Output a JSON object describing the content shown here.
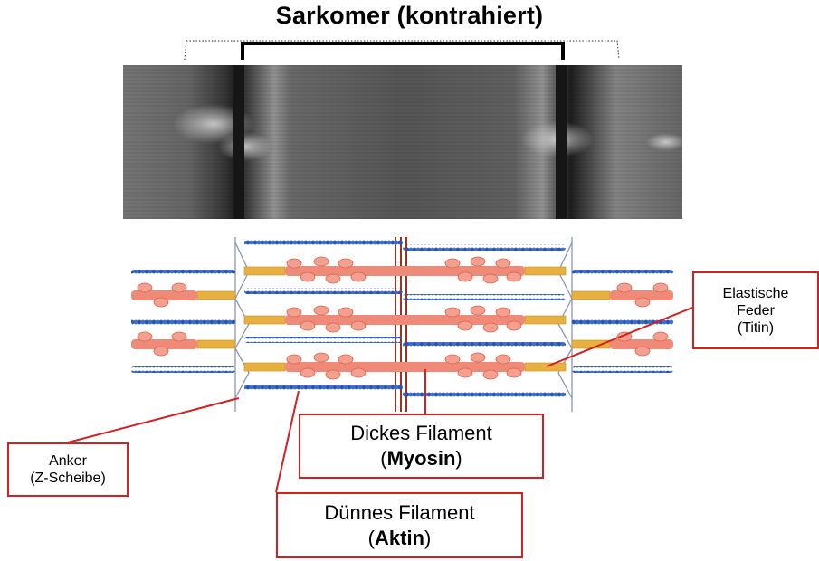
{
  "title": "Sarkomer (kontrahiert)",
  "labels": {
    "anchor_line1": "Anker",
    "anchor_line2": "(Z-Scheibe)",
    "titin_line1": "Elastische",
    "titin_line2": "Feder",
    "titin_line3": "(Titin)",
    "myosin_line1": "Dickes Filament",
    "myosin_open": "(",
    "myosin_bold": "Myosin",
    "myosin_close": ")",
    "actin_line1": "Dünnes Filament",
    "actin_open": "(",
    "actin_bold": "Aktin",
    "actin_close": ")"
  },
  "colors": {
    "callout": "#d42020",
    "actin": "#2a55b0",
    "myosin": "#f08a78",
    "titin": "#e8b040",
    "zdisc": "#8a96b8",
    "mline": "#a03020"
  }
}
